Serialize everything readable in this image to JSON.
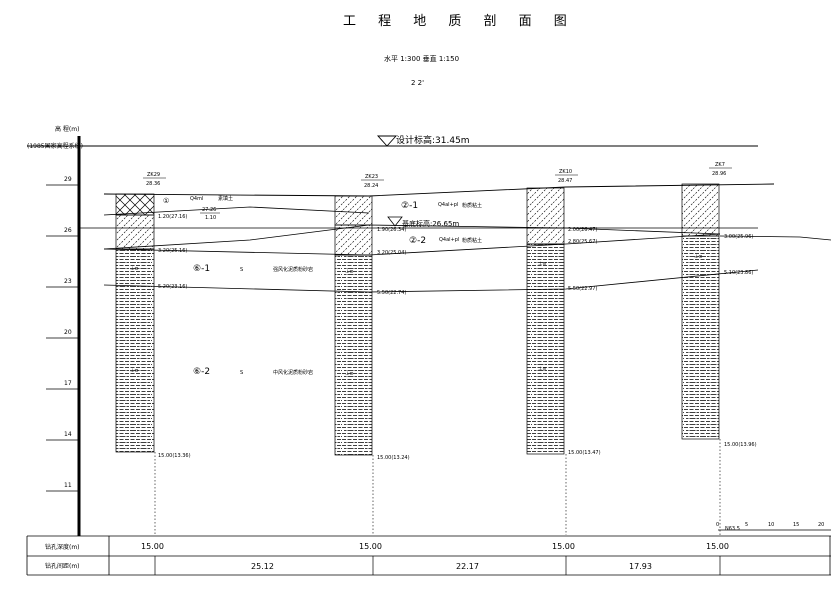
{
  "title": "工 程 地 质 剖 面 图",
  "scale": "水平 1:300    垂直 1:150",
  "section_id": "2    2'",
  "elevation_axis": {
    "label": "高 程(m)",
    "system": "(1985国家高程系统)",
    "ticks": [
      "29",
      "26",
      "23",
      "20",
      "17",
      "14",
      "11"
    ]
  },
  "design_elevation": "设计标高:31.45m",
  "base_elevation": "基底标高:26.65m",
  "boreholes": [
    {
      "id": "ZK29",
      "elev": "28.36",
      "depth": "15.00(13.36)",
      "marks": [
        "1.20(27.16)",
        "3.20(25.16)",
        "5.20(23.16)"
      ]
    },
    {
      "id": "ZK23",
      "elev": "28.24",
      "depth": "15.00(13.24)",
      "marks": [
        "1.90(26.34)",
        "3.20(25.04)",
        "5.50(22.74)"
      ]
    },
    {
      "id": "ZK10",
      "elev": "28.47",
      "depth": "15.00(13.47)",
      "marks": [
        "2.00(26.47)",
        "2.80(25.67)",
        "5.50(22.97)"
      ]
    },
    {
      "id": "ZK7",
      "elev": "28.96",
      "depth": "15.00(13.96)",
      "marks": [
        "3.00(25.96)",
        "5.10(23.86)"
      ]
    }
  ],
  "layers": [
    {
      "code": "①",
      "age": "Q4ml",
      "name": "素填土"
    },
    {
      "code": "②-1",
      "age": "Q4al+pl",
      "name": "粉质粘土"
    },
    {
      "code": "②-2",
      "age": "Q4al+pl",
      "name": "粉质粘土"
    },
    {
      "code": "⑥-1",
      "age": "S",
      "name": "强风化泥质粉砂岩"
    },
    {
      "code": "⑥-2",
      "age": "S",
      "name": "中风化泥质粉砂岩"
    }
  ],
  "layer_fraction": {
    "num": "27.26",
    "den": "1.10"
  },
  "n_scale": {
    "label": "N63.5",
    "ticks": [
      "0",
      "5",
      "10",
      "15",
      "20"
    ]
  },
  "table": {
    "depth_label": "钻孔深度(m)",
    "spacing_label": "钻孔间距(m)",
    "depths": [
      "15.00",
      "15.00",
      "15.00",
      "15.00"
    ],
    "spacings": [
      "25.12",
      "22.17",
      "17.93"
    ]
  },
  "colors": {
    "line": "#000000",
    "background": "#ffffff"
  }
}
